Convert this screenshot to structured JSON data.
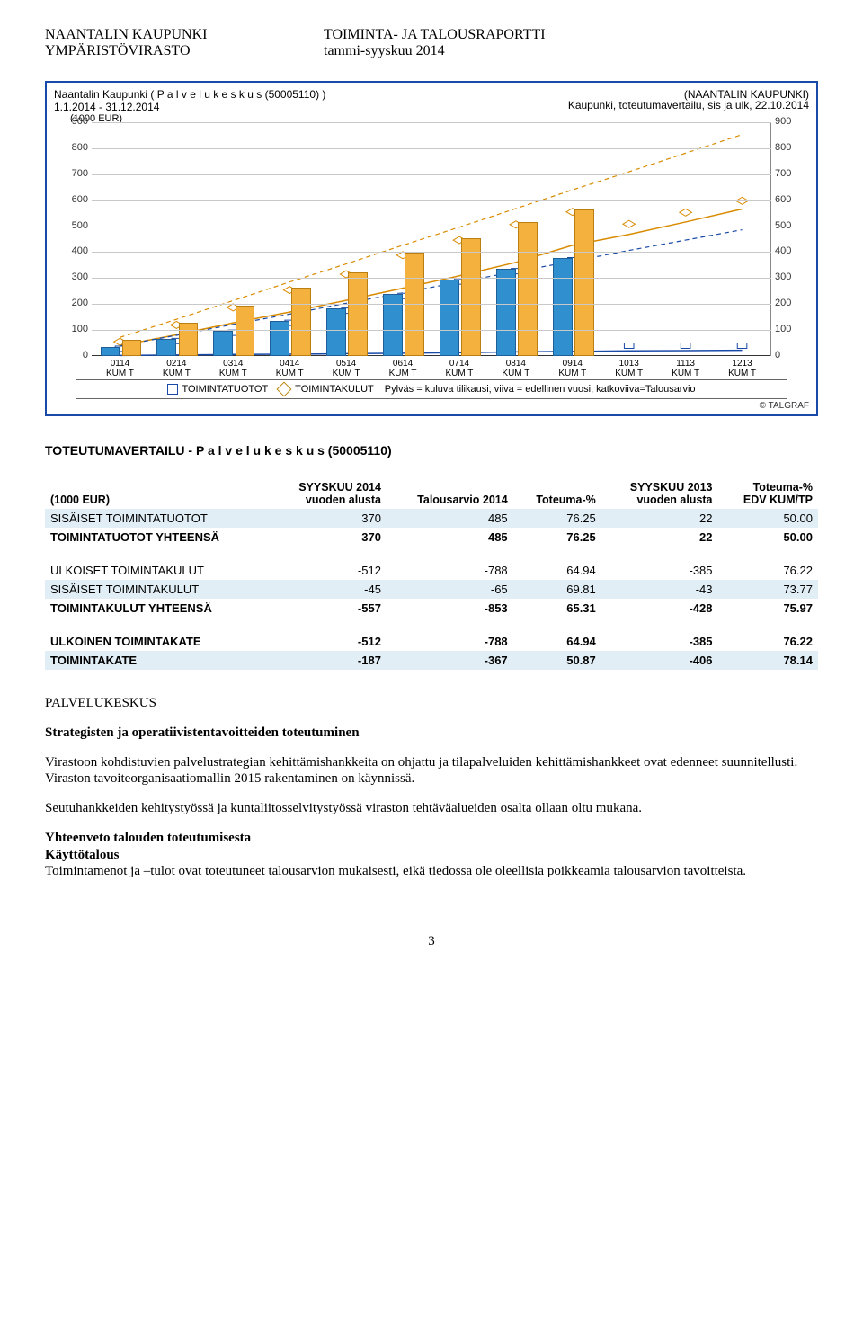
{
  "header": {
    "left1": "NAANTALIN KAUPUNKI",
    "left2": "YMPÄRISTÖVIRASTO",
    "right1": "TOIMINTA- JA TALOUSRAPORTTI",
    "right2": "tammi-syyskuu 2014"
  },
  "chart": {
    "type": "bar+line",
    "title_left": "Naantalin Kaupunki ( P a l v e l u k e s k u s (50005110) )",
    "title_right": "(NAANTALIN KAUPUNKI)",
    "subtitle_right": "Kaupunki, toteutumavertailu, sis ja ulk, 22.10.2014",
    "date_range": "1.1.2014 - 31.12.2014",
    "y_unit": "(1000 EUR)",
    "y_min": 0,
    "y_max": 900,
    "y_tick_step": 100,
    "grid_color": "#c9c9c9",
    "categories": [
      "0114",
      "0214",
      "0314",
      "0414",
      "0514",
      "0614",
      "0714",
      "0814",
      "0914",
      "1013",
      "1113",
      "1213"
    ],
    "cat_sub": "KUM T",
    "bars_blue": [
      28,
      58,
      90,
      128,
      175,
      232,
      288,
      328,
      370,
      null,
      null,
      null
    ],
    "bars_orange": [
      55,
      120,
      188,
      255,
      316,
      390,
      448,
      508,
      557,
      null,
      null,
      null
    ],
    "blue_points": [
      28,
      58,
      90,
      128,
      175,
      232,
      288,
      328,
      370,
      40,
      40,
      40
    ],
    "orange_points": [
      55,
      120,
      188,
      255,
      316,
      390,
      448,
      508,
      557,
      510,
      555,
      600
    ],
    "prev_blue_line": [
      2,
      4,
      6,
      7,
      9,
      11,
      13,
      16,
      18,
      20,
      21,
      22
    ],
    "prev_orange_line": [
      40,
      82,
      128,
      170,
      215,
      262,
      310,
      362,
      428,
      470,
      518,
      568
    ],
    "dash_blue": [
      40,
      80,
      122,
      162,
      204,
      244,
      286,
      326,
      366,
      408,
      448,
      488
    ],
    "dash_orange": [
      72,
      142,
      214,
      286,
      356,
      428,
      498,
      570,
      642,
      712,
      784,
      856
    ],
    "bar_blue_color": "#2f8fcf",
    "bar_orange_color": "#f4b13e",
    "bar_border": "#1f5f99",
    "bar_border_o": "#b97f12",
    "line_blue": "#1a4aa8",
    "line_orange": "#d98b00",
    "bar_width_pct": 2.6,
    "legend_a": "TOIMINTATUOTOT",
    "legend_b": "TOIMINTAKULUT",
    "legend_text": "Pylväs = kuluva tilikausi; viiva = edellinen vuosi; katkoviiva=Talousarvio",
    "copyright": "© TALGRAF"
  },
  "table": {
    "title": "TOTEUTUMAVERTAILU - P a l v e l u k e s k u s (50005110)",
    "unit": "(1000 EUR)",
    "columns": [
      "",
      "SYYSKUU 2014\nvuoden alusta",
      "Talousarvio 2014",
      "Toteuma-%",
      "SYYSKUU 2013\nvuoden alusta",
      "Toteuma-%\nEDV KUM/TP"
    ],
    "rows": [
      {
        "cells": [
          "SISÄISET TOIMINTATUOTOT",
          "370",
          "485",
          "76.25",
          "22",
          "50.00"
        ],
        "band": true
      },
      {
        "cells": [
          "TOIMINTATUOTOT YHTEENSÄ",
          "370",
          "485",
          "76.25",
          "22",
          "50.00"
        ],
        "bold": true
      },
      {
        "spacer": true
      },
      {
        "cells": [
          "ULKOISET TOIMINTAKULUT",
          "-512",
          "-788",
          "64.94",
          "-385",
          "76.22"
        ]
      },
      {
        "cells": [
          "SISÄISET TOIMINTAKULUT",
          "-45",
          "-65",
          "69.81",
          "-43",
          "73.77"
        ],
        "band": true
      },
      {
        "cells": [
          "TOIMINTAKULUT YHTEENSÄ",
          "-557",
          "-853",
          "65.31",
          "-428",
          "75.97"
        ],
        "bold": true
      },
      {
        "spacer": true
      },
      {
        "cells": [
          "ULKOINEN TOIMINTAKATE",
          "-512",
          "-788",
          "64.94",
          "-385",
          "76.22"
        ],
        "bold": true
      },
      {
        "cells": [
          "TOIMINTAKATE",
          "-187",
          "-367",
          "50.87",
          "-406",
          "78.14"
        ],
        "band": true,
        "bold": true
      }
    ]
  },
  "body": {
    "section": "PALVELUKESKUS",
    "h1": "Strategisten ja operatiivistentavoitteiden toteutuminen",
    "p1": "Virastoon kohdistuvien palvelustrategian kehittämishankkeita on ohjattu ja tilapalveluiden kehittämishankkeet ovat edenneet suunnitellusti. Viraston tavoiteorganisaatiomallin 2015 rakentaminen on käynnissä.",
    "p2": "Seutuhankkeiden kehitystyössä ja kuntaliitosselvitystyössä viraston tehtäväalueiden osalta ollaan oltu mukana.",
    "h2": "Yhteenveto talouden toteutumisesta",
    "h3": "Käyttötalous",
    "p3": "Toimintamenot ja –tulot ovat toteutuneet talousarvion mukaisesti, eikä tiedossa ole oleellisia poikkeamia talousarvion tavoitteista."
  },
  "pagenum": "3"
}
